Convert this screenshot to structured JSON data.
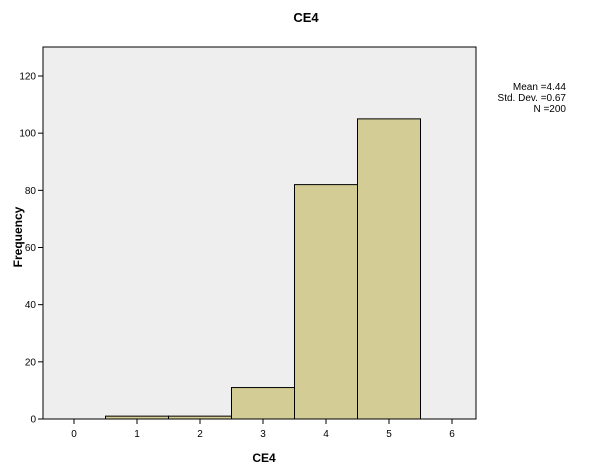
{
  "chart_data": {
    "type": "bar",
    "title": "CE4",
    "xlabel": "CE4",
    "ylabel": "Frequency",
    "xlim": [
      0,
      6
    ],
    "ylim": [
      0,
      120
    ],
    "xticks": [
      "0",
      "1",
      "2",
      "3",
      "4",
      "5",
      "6"
    ],
    "yticks": [
      "0",
      "20",
      "40",
      "60",
      "80",
      "100",
      "120"
    ],
    "categories": [
      "1",
      "2",
      "3",
      "4",
      "5"
    ],
    "values": [
      1,
      1,
      11,
      82,
      105
    ],
    "bar_color": "#d3cd95",
    "plot_background": "#eeeeee",
    "grid": false,
    "stats": {
      "mean": "Mean =4.44",
      "std_dev": "Std. Dev. =0.67",
      "n": "N =200"
    }
  }
}
